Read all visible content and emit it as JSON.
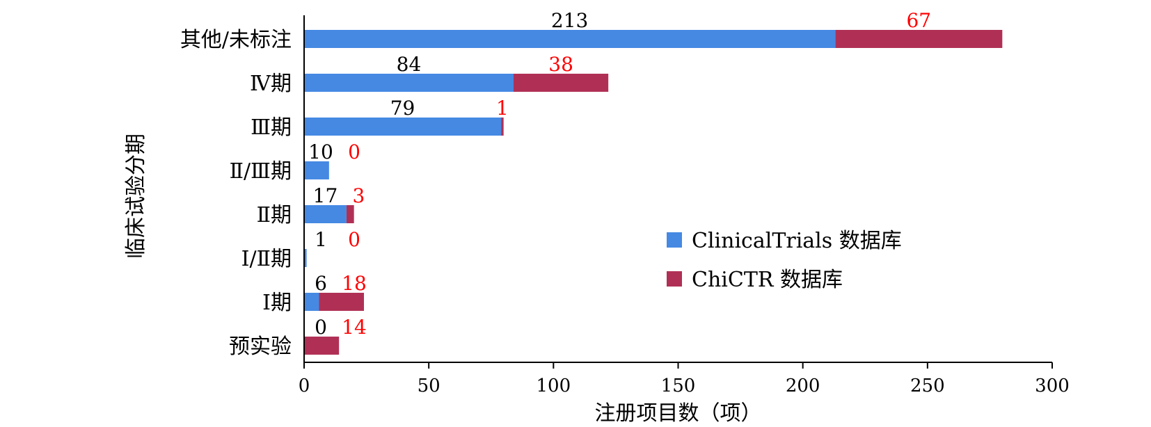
{
  "chart_data": {
    "type": "bar",
    "orientation": "horizontal",
    "stacked": true,
    "xlabel": "注册项目数（项）",
    "ylabel": "临床试验分期",
    "xlim": [
      0,
      300
    ],
    "xticks": [
      0,
      50,
      100,
      150,
      200,
      250,
      300
    ],
    "grid": false,
    "legend_position": "right-middle",
    "categories": [
      "其他/未标注",
      "Ⅳ期",
      "Ⅲ期",
      "Ⅱ/Ⅲ期",
      "Ⅱ期",
      "Ⅰ/Ⅱ期",
      "Ⅰ期",
      "预实验"
    ],
    "series": [
      {
        "name": "ClinicalTrials 数据库",
        "color": "#4589E3",
        "label_color": "#000000",
        "values": [
          213,
          84,
          79,
          10,
          17,
          1,
          6,
          0
        ]
      },
      {
        "name": "ChiCTR 数据库",
        "color": "#B03055",
        "label_color": "#FF0000",
        "values": [
          67,
          38,
          1,
          0,
          3,
          0,
          18,
          14
        ]
      }
    ]
  }
}
